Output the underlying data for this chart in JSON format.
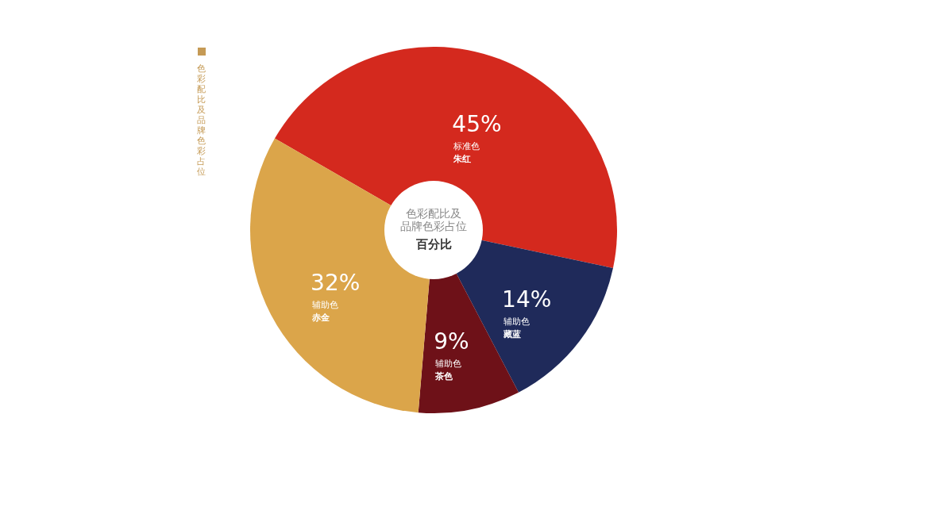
{
  "chart_data": {
    "type": "donut",
    "title": "色彩配比及品牌色彩占位",
    "subtitle": "百分比",
    "categories": [
      "朱红",
      "藏蓝",
      "茶色",
      "赤金"
    ],
    "values": [
      45,
      14,
      9,
      32
    ],
    "colors": [
      "#d4291e",
      "#1f2a5a",
      "#6e1118",
      "#dba54a"
    ],
    "value_labels": [
      "45%",
      "14%",
      "9%",
      "32%"
    ],
    "annotations": [
      {
        "text": "标准色",
        "x": "朱红"
      },
      {
        "text": "辅助色",
        "x": "藏蓝"
      },
      {
        "text": "辅助色",
        "x": "茶色"
      },
      {
        "text": "辅助色",
        "x": "赤金"
      },
      "色彩配比及品牌色彩占位"
    ]
  }
}
